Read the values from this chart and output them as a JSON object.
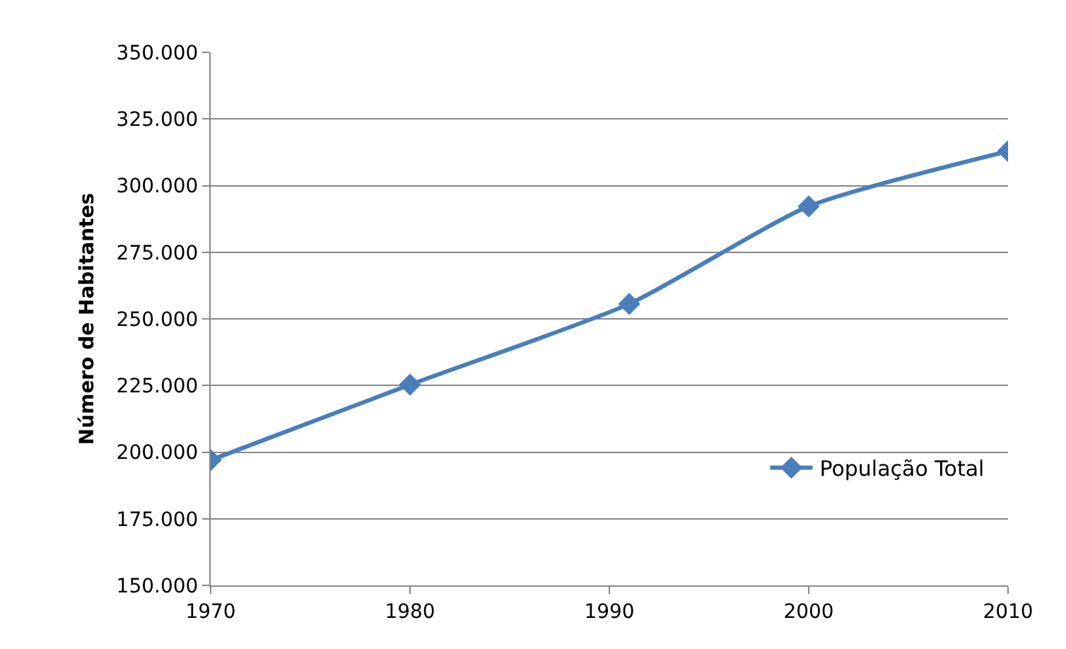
{
  "chart_data": {
    "type": "line",
    "ylabel": "Número de Habitantes",
    "x": [
      1970,
      1980,
      1991,
      2000,
      2010
    ],
    "series": [
      {
        "name": "População Total",
        "color": "#4a7ebb",
        "values": [
          197000,
          225300,
          255600,
          292200,
          312900
        ]
      }
    ],
    "xlim": [
      1970,
      2010
    ],
    "xticks": [
      1970,
      1980,
      1990,
      2000,
      2010
    ],
    "ylim": [
      150000,
      350000
    ],
    "yticks": [
      {
        "value": 150000,
        "label": "150.000"
      },
      {
        "value": 175000,
        "label": "175.000"
      },
      {
        "value": 200000,
        "label": "200.000"
      },
      {
        "value": 225000,
        "label": "225.000"
      },
      {
        "value": 250000,
        "label": "250.000"
      },
      {
        "value": 275000,
        "label": "275.000"
      },
      {
        "value": 300000,
        "label": "300.000"
      },
      {
        "value": 325000,
        "label": "325.000"
      },
      {
        "value": 350000,
        "label": "350.000"
      }
    ],
    "grid": "y",
    "legend": "right",
    "marker": "diamond",
    "line_style": "solid"
  }
}
